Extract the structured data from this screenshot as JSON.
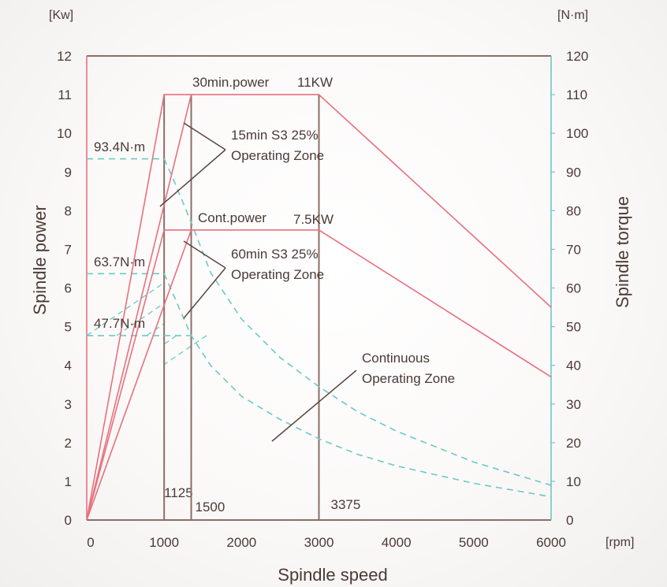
{
  "chart_data": {
    "type": "line",
    "xlabel": "Spindle speed",
    "x_unit": "[rpm]",
    "ylabel_left": "Spindle power",
    "y_unit_left": "[Kw]",
    "ylabel_right": "Spindle  torque",
    "y_unit_right": "[N·m]",
    "xlim": [
      0,
      6000
    ],
    "ylim_left": [
      0,
      12
    ],
    "ylim_right": [
      0,
      120
    ],
    "x_ticks": [
      "0",
      "1000",
      "2000",
      "3000",
      "4000",
      "5000",
      "6000"
    ],
    "y_ticks_left": [
      "0",
      "1",
      "2",
      "3",
      "4",
      "5",
      "6",
      "7",
      "8",
      "9",
      "10",
      "11",
      "12"
    ],
    "y_ticks_right": [
      "0",
      "10",
      "20",
      "30",
      "40",
      "50",
      "60",
      "70",
      "80",
      "90",
      "100",
      "110",
      "120"
    ],
    "vertical_markers": [
      {
        "x": 1000,
        "label": "1125"
      },
      {
        "x": 1350,
        "label": "1500"
      },
      {
        "x": 3000,
        "label": "3375"
      }
    ],
    "power_series": [
      {
        "points": [
          [
            0,
            0
          ],
          [
            1000,
            11
          ],
          [
            1350,
            11
          ],
          [
            3000,
            11
          ],
          [
            6000,
            5.5
          ]
        ]
      },
      {
        "points": [
          [
            0,
            0
          ],
          [
            1350,
            11
          ]
        ]
      },
      {
        "points": [
          [
            0,
            0
          ],
          [
            1000,
            7.5
          ],
          [
            1350,
            7.5
          ],
          [
            3000,
            7.5
          ],
          [
            6000,
            3.7
          ]
        ]
      },
      {
        "points": [
          [
            0,
            0
          ],
          [
            1350,
            7.5
          ]
        ]
      }
    ],
    "torque_series": [
      {
        "points": [
          [
            0,
            93.4
          ],
          [
            1000,
            93.4
          ],
          [
            1100,
            89
          ],
          [
            1350,
            77
          ],
          [
            1600,
            64
          ],
          [
            2000,
            52
          ],
          [
            2500,
            42
          ],
          [
            3000,
            34.5
          ],
          [
            3500,
            28
          ],
          [
            4000,
            23
          ],
          [
            5000,
            15
          ],
          [
            6000,
            9
          ]
        ]
      },
      {
        "points": [
          [
            0,
            63.7
          ],
          [
            1000,
            63.7
          ],
          [
            1350,
            47.7
          ],
          [
            1600,
            40
          ],
          [
            2000,
            32
          ],
          [
            2500,
            26
          ],
          [
            3000,
            21
          ],
          [
            3500,
            17
          ],
          [
            4000,
            14
          ],
          [
            5000,
            9.5
          ],
          [
            6000,
            6
          ]
        ]
      },
      {
        "points": [
          [
            0,
            47.7
          ],
          [
            1350,
            47.7
          ]
        ]
      }
    ],
    "annotations": {
      "power_30min": "30min.power",
      "power_30min_value": "11KW",
      "power_cont": "Cont.power",
      "power_cont_value": "7.5KW",
      "zone_15min_line1": "15min S3 25%",
      "zone_15min_line2": "Operating Zone",
      "zone_60min_line1": "60min S3 25%",
      "zone_60min_line2": "Operating Zone",
      "zone_cont_line1": "Continuous",
      "zone_cont_line2": "Operating Zone",
      "torque_max": "93.4N·m",
      "torque_mid": "63.7N·m",
      "torque_low": "47.7N·m"
    },
    "colors": {
      "power": "#e8707e",
      "torque": "#6cc9c4",
      "frame": "#8a6f67",
      "leader": "#5a4640",
      "text": "#4a3a36"
    },
    "grid": false,
    "legend": "none"
  }
}
